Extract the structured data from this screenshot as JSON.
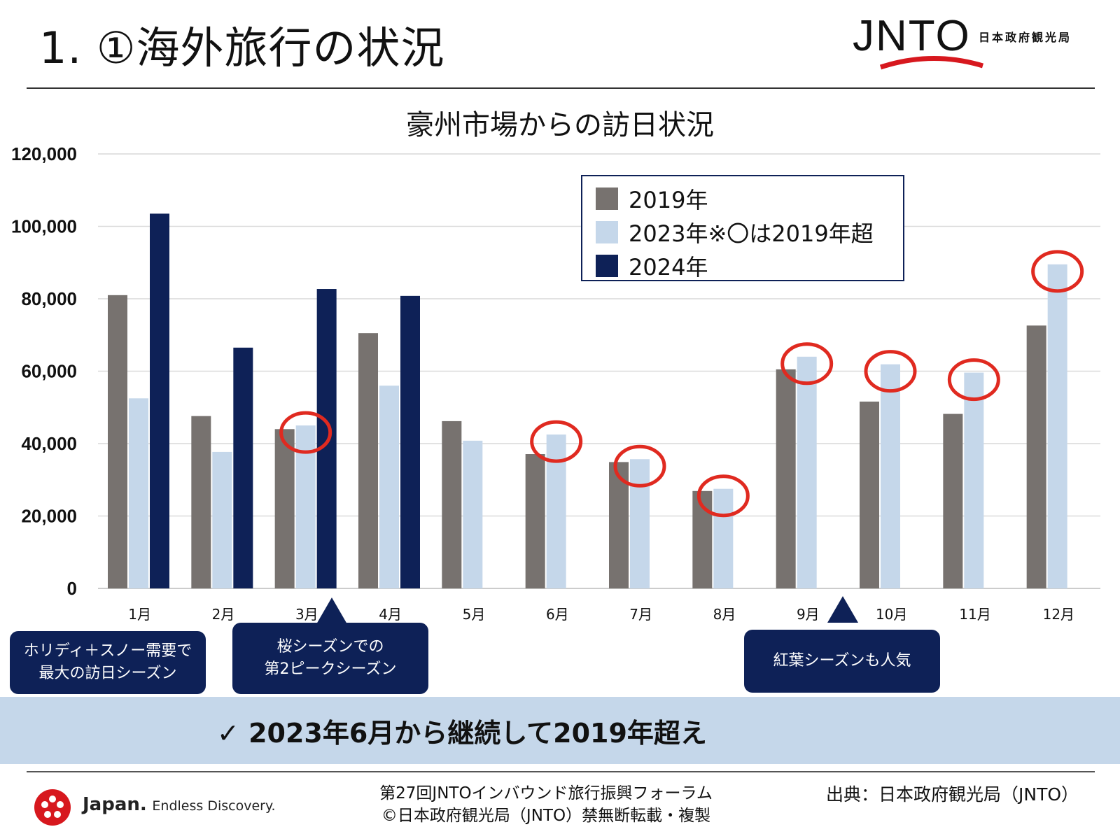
{
  "header": {
    "title": "1. ①海外旅行の状況",
    "brand_logo": "JNTO",
    "brand_org": "日本政府観光局"
  },
  "chart_data": {
    "type": "bar",
    "title": "豪州市場からの訪日状況",
    "categories": [
      "1月",
      "2月",
      "3月",
      "4月",
      "5月",
      "6月",
      "7月",
      "8月",
      "9月",
      "10月",
      "11月",
      "12月"
    ],
    "series": [
      {
        "name": "2019年",
        "color": "#77726f",
        "values": [
          81000,
          47600,
          44000,
          70500,
          46200,
          37100,
          34900,
          26900,
          60500,
          51600,
          48200,
          72600
        ]
      },
      {
        "name": "2023年※〇は2019年超",
        "color": "#c5d7ea",
        "values": [
          52500,
          37700,
          45000,
          56000,
          40800,
          42500,
          35700,
          27500,
          64000,
          61900,
          59600,
          89500
        ]
      },
      {
        "name": "2024年",
        "color": "#0e2157",
        "values": [
          103500,
          66500,
          82700,
          80800,
          null,
          null,
          null,
          null,
          null,
          null,
          null,
          null
        ]
      }
    ],
    "ylim": [
      0,
      120000
    ],
    "yticks": [
      0,
      20000,
      40000,
      60000,
      80000,
      100000,
      120000
    ],
    "ytick_labels": [
      "0",
      "20,000",
      "40,000",
      "60,000",
      "80,000",
      "100,000",
      "120,000"
    ],
    "highlighted_2023_over_2019": [
      "3月",
      "6月",
      "7月",
      "8月",
      "9月",
      "10月",
      "11月",
      "12月"
    ],
    "highlight_color": "#e02a20",
    "grid": true,
    "legend_position": "top-right"
  },
  "callouts": [
    {
      "text": "ホリディ＋スノー需要で\n最大の訪日シーズン"
    },
    {
      "text": "桜シーズンでの\n第2ピークシーズン"
    },
    {
      "text": "紅葉シーズンも人気"
    }
  ],
  "banner": {
    "text": "✓ 2023年6月から継続して2019年超え"
  },
  "footer": {
    "tagline_main": "Japan.",
    "tagline_sub": "Endless Discovery.",
    "forum": "第27回JNTOインバウンド旅行振興フォーラム",
    "copyright": "©日本政府観光局（JNTO）禁無断転載・複製",
    "source": "出典：日本政府観光局（JNTO）"
  }
}
